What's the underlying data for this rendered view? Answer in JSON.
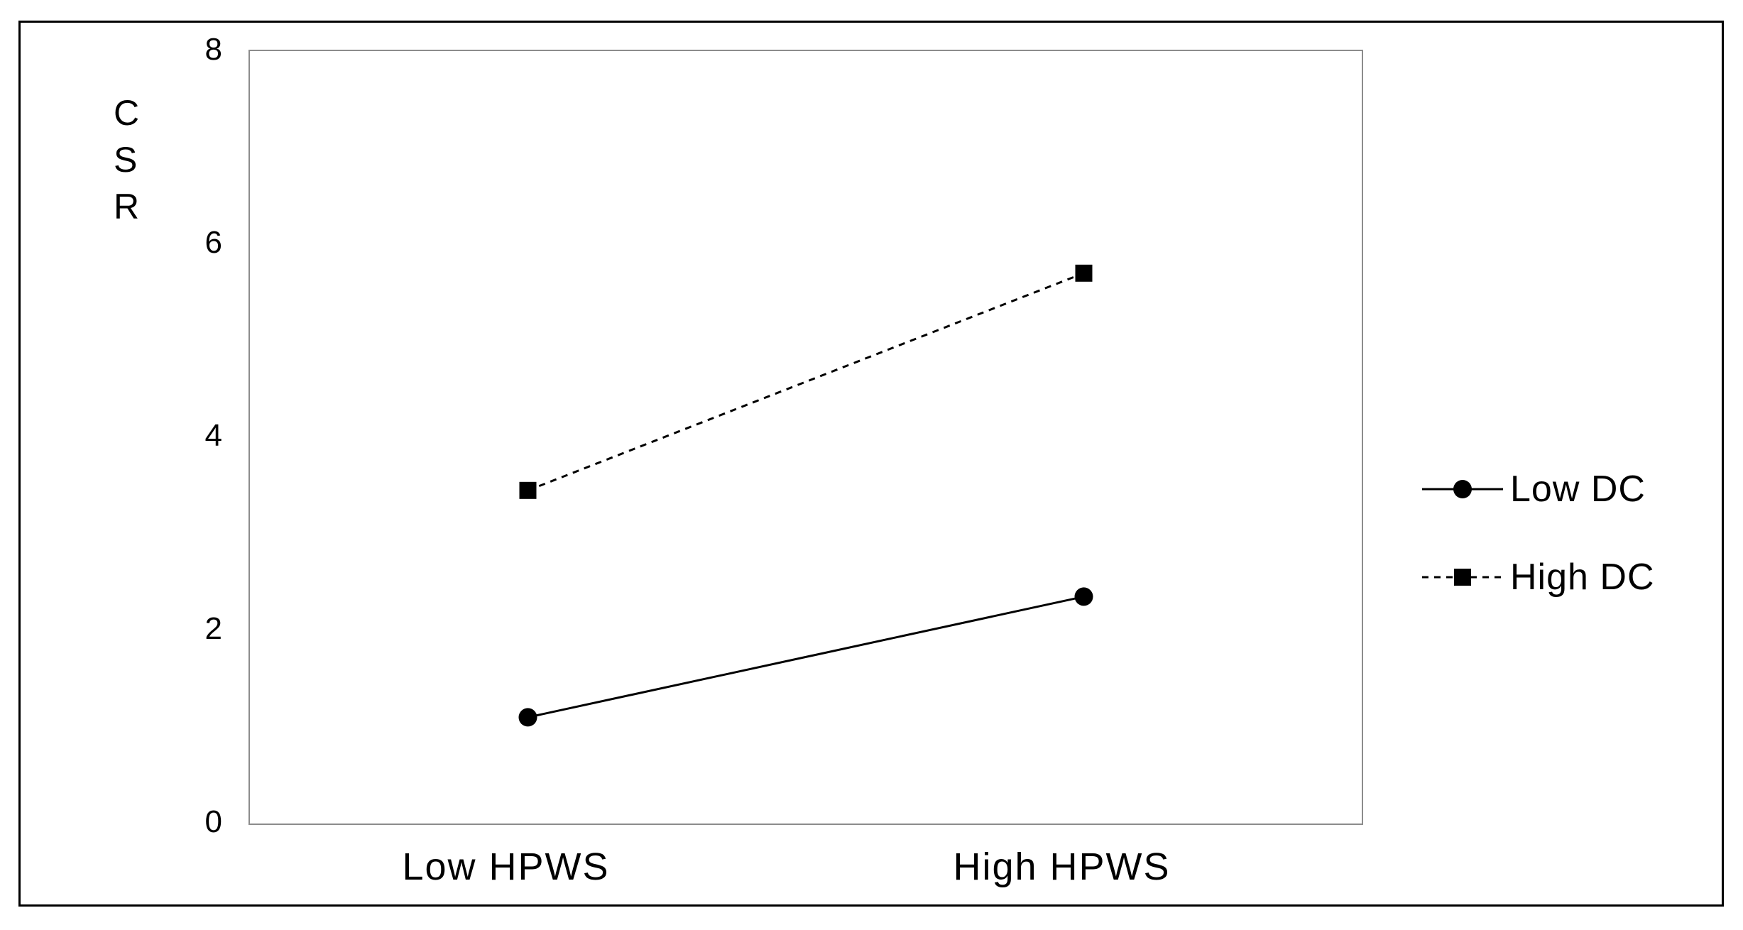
{
  "figure": {
    "background_color": "#ffffff",
    "frame_border_color": "#000000",
    "plot_border_color": "#8c8c8c",
    "text_color": "#000000"
  },
  "chart_data": {
    "type": "line",
    "title": "",
    "xlabel": "",
    "ylabel": "CSR",
    "categories": [
      "Low HPWS",
      "High HPWS"
    ],
    "series": [
      {
        "name": "Low DC",
        "values": [
          1.1,
          2.35
        ],
        "line_style": "solid",
        "marker": "circle",
        "color": "#000000"
      },
      {
        "name": "High DC",
        "values": [
          3.45,
          5.7
        ],
        "line_style": "dashed",
        "marker": "square",
        "color": "#000000"
      }
    ],
    "ylim": [
      0,
      8
    ],
    "yticks": [
      0,
      2,
      4,
      6,
      8
    ],
    "grid": false,
    "legend_position": "right-outside"
  }
}
